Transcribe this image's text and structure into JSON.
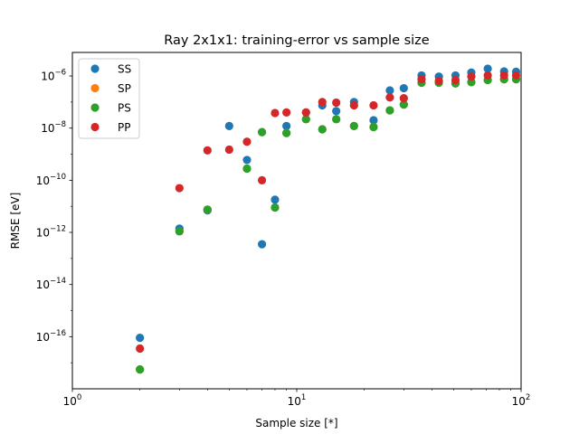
{
  "chart_data": {
    "type": "scatter",
    "title": "Ray 2x1x1: training-error vs sample size",
    "xlabel": "Sample size [*]",
    "ylabel": "RMSE [eV]",
    "xscale": "log",
    "yscale": "log",
    "xlim": [
      1,
      100
    ],
    "ylim": [
      1e-18,
      8e-06
    ],
    "grid": false,
    "legend": "top-left",
    "x_ticks": [
      {
        "value": 1,
        "base": "10",
        "exp": "0"
      },
      {
        "value": 10,
        "base": "10",
        "exp": "1"
      },
      {
        "value": 100,
        "base": "10",
        "exp": "2"
      }
    ],
    "y_ticks": [
      {
        "value": 1e-16,
        "base": "10",
        "exp": "−16"
      },
      {
        "value": 1e-14,
        "base": "10",
        "exp": "−14"
      },
      {
        "value": 1e-12,
        "base": "10",
        "exp": "−12"
      },
      {
        "value": 1e-10,
        "base": "10",
        "exp": "−10"
      },
      {
        "value": 1e-08,
        "base": "10",
        "exp": "−8"
      },
      {
        "value": 1e-06,
        "base": "10",
        "exp": "−6"
      }
    ],
    "series": [
      {
        "name": "SS",
        "color": "#1f77b4",
        "points": [
          [
            2,
            9e-17
          ],
          [
            3,
            1.4e-12
          ],
          [
            4,
            7e-12
          ],
          [
            5,
            1.2e-08
          ],
          [
            6,
            6e-10
          ],
          [
            7,
            3.5e-13
          ],
          [
            8,
            1.8e-11
          ],
          [
            9,
            1.2e-08
          ],
          [
            11,
            4e-08
          ],
          [
            13,
            7.5e-08
          ],
          [
            15,
            4.5e-08
          ],
          [
            18,
            1e-07
          ],
          [
            22,
            2e-08
          ],
          [
            26,
            2.8e-07
          ],
          [
            30,
            3.4e-07
          ],
          [
            36,
            1.05e-06
          ],
          [
            43,
            9.5e-07
          ],
          [
            51,
            1.05e-06
          ],
          [
            60,
            1.35e-06
          ],
          [
            71,
            1.9e-06
          ],
          [
            84,
            1.5e-06
          ],
          [
            95,
            1.45e-06
          ]
        ]
      },
      {
        "name": "SP",
        "color": "#ff7f0e",
        "points": [
          [
            2,
            5.5e-18
          ],
          [
            3,
            1.1e-12
          ],
          [
            4,
            7.5e-12
          ],
          [
            6,
            2.8e-10
          ],
          [
            7,
            7e-09
          ],
          [
            8,
            9e-12
          ],
          [
            9,
            6.5e-09
          ],
          [
            11,
            2.2e-08
          ],
          [
            13,
            9e-09
          ],
          [
            15,
            2.2e-08
          ],
          [
            18,
            1.2e-08
          ],
          [
            22,
            1.1e-08
          ],
          [
            26,
            4.8e-08
          ],
          [
            30,
            8e-08
          ],
          [
            36,
            5.5e-07
          ],
          [
            43,
            5.5e-07
          ],
          [
            51,
            5.2e-07
          ],
          [
            60,
            5.8e-07
          ],
          [
            71,
            7e-07
          ],
          [
            84,
            7.5e-07
          ],
          [
            95,
            7.5e-07
          ]
        ]
      },
      {
        "name": "PS",
        "color": "#2ca02c",
        "points": [
          [
            2,
            5.5e-18
          ],
          [
            3,
            1.1e-12
          ],
          [
            4,
            7.5e-12
          ],
          [
            6,
            2.8e-10
          ],
          [
            7,
            7e-09
          ],
          [
            8,
            9e-12
          ],
          [
            9,
            6.5e-09
          ],
          [
            11,
            2.2e-08
          ],
          [
            13,
            9e-09
          ],
          [
            15,
            2.2e-08
          ],
          [
            18,
            1.2e-08
          ],
          [
            22,
            1.1e-08
          ],
          [
            26,
            4.8e-08
          ],
          [
            30,
            8e-08
          ],
          [
            36,
            5.5e-07
          ],
          [
            43,
            5.5e-07
          ],
          [
            51,
            5.2e-07
          ],
          [
            60,
            5.8e-07
          ],
          [
            71,
            7e-07
          ],
          [
            84,
            7.5e-07
          ],
          [
            95,
            7.5e-07
          ]
        ]
      },
      {
        "name": "PP",
        "color": "#d62728",
        "points": [
          [
            2,
            3.5e-17
          ],
          [
            3,
            5e-11
          ],
          [
            4,
            1.4e-09
          ],
          [
            5,
            1.5e-09
          ],
          [
            6,
            3e-09
          ],
          [
            7,
            1e-10
          ],
          [
            8,
            3.8e-08
          ],
          [
            9,
            4e-08
          ],
          [
            11,
            4e-08
          ],
          [
            13,
            1e-07
          ],
          [
            15,
            9.5e-08
          ],
          [
            18,
            7.5e-08
          ],
          [
            22,
            7.5e-08
          ],
          [
            26,
            1.5e-07
          ],
          [
            30,
            1.4e-07
          ],
          [
            36,
            7.5e-07
          ],
          [
            43,
            6.5e-07
          ],
          [
            51,
            7e-07
          ],
          [
            60,
            9.5e-07
          ],
          [
            71,
            1.05e-06
          ],
          [
            84,
            1.05e-06
          ],
          [
            95,
            1.05e-06
          ]
        ]
      }
    ]
  }
}
